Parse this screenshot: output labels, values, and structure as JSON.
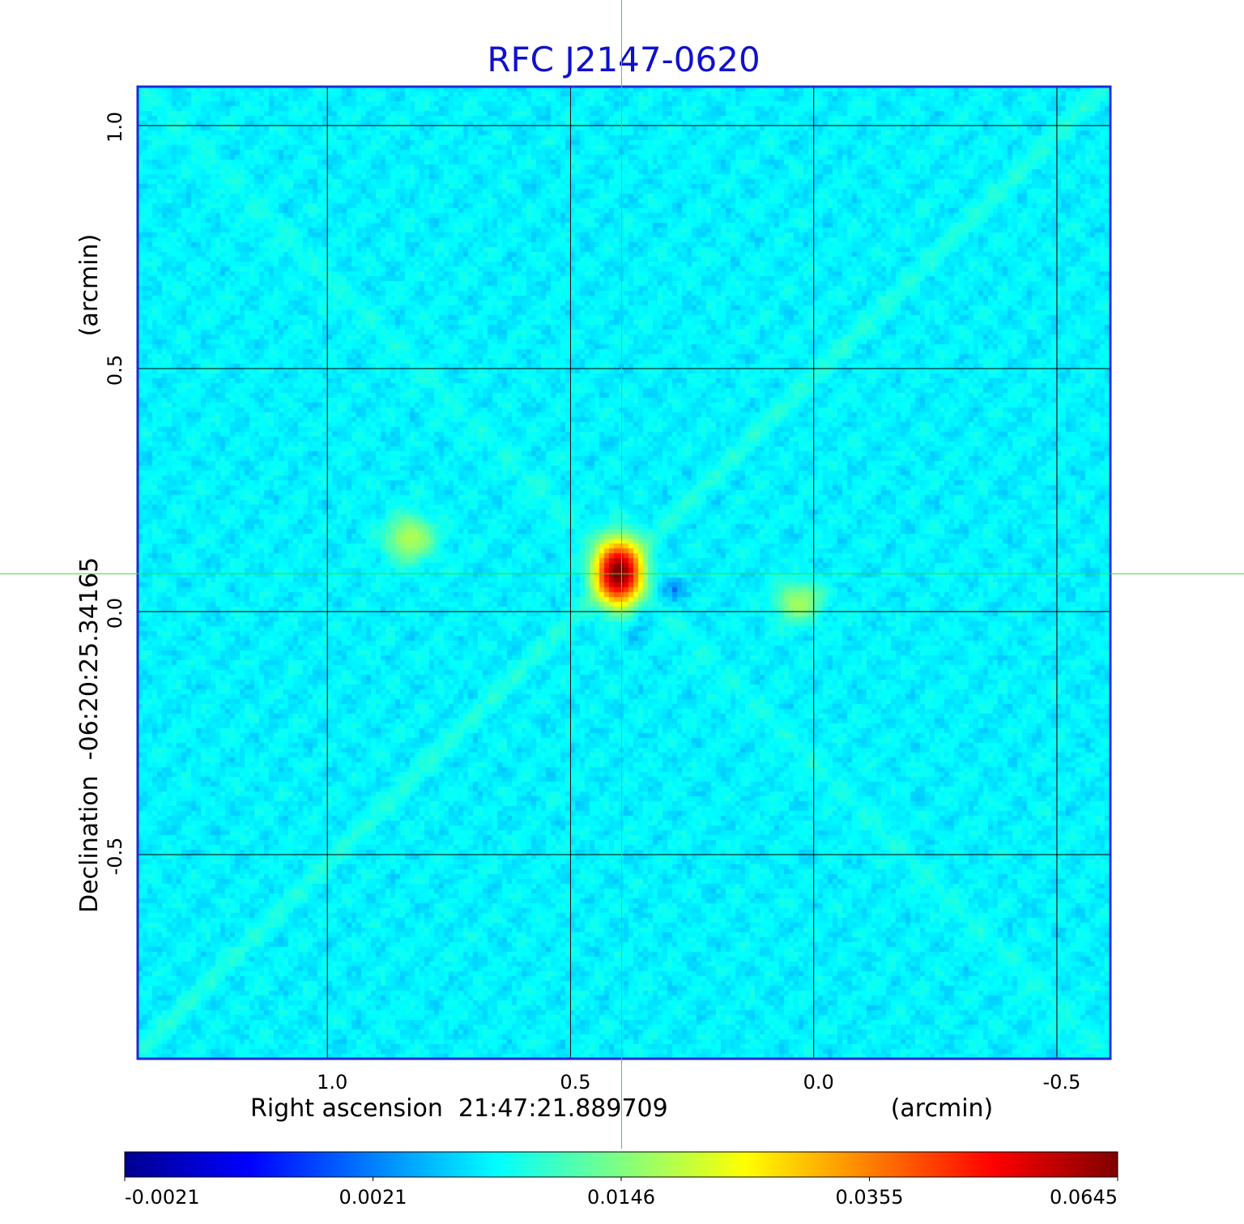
{
  "chart_data": {
    "type": "heatmap",
    "title": "RFC J2147-0620",
    "xlabel": "Right ascension  21:47:21.889709",
    "xunit": "(arcmin)",
    "ylabel": "Declination  -06:20:25.34165",
    "yunit": "(arcmin)",
    "xlim": [
      1.39,
      -0.61
    ],
    "ylim": [
      -0.92,
      1.08
    ],
    "x_ticks": [
      1.0,
      0.5,
      0.0,
      -0.5
    ],
    "x_tick_labels": [
      "1.0",
      "0.5",
      "0.0",
      "-0.5"
    ],
    "y_ticks": [
      1.0,
      0.5,
      0.0,
      -0.5
    ],
    "y_tick_labels": [
      "1.0",
      "0.5",
      "0.0",
      "-0.5"
    ],
    "grid": true,
    "crosshair": {
      "x": 0.395,
      "y": 0.078,
      "color": "#33dd33"
    },
    "colormap": "jet",
    "colorbar": {
      "placement": "bottom",
      "ticks": [
        "-0.0021",
        "0.0021",
        "0.0146",
        "0.0355",
        "0.0645"
      ],
      "min": -0.0021,
      "max": 0.0645
    },
    "background_level": 0.0008,
    "sources": [
      {
        "x": 0.4,
        "y": 0.08,
        "peak": 0.0645,
        "sx": 0.028,
        "sy": 0.038
      },
      {
        "x": 0.83,
        "y": 0.15,
        "peak": 0.009,
        "sx": 0.032,
        "sy": 0.03
      },
      {
        "x": 0.03,
        "y": 0.02,
        "peak": 0.008,
        "sx": 0.03,
        "sy": 0.026
      }
    ],
    "negative_features": [
      {
        "x": 0.29,
        "y": 0.05,
        "peak": -0.0018,
        "sx": 0.03,
        "sy": 0.018
      },
      {
        "x": 0.36,
        "y": -0.01,
        "peak": -0.0016,
        "sx": 0.015,
        "sy": 0.03
      }
    ],
    "colors": {
      "frame": "#1a2bd6",
      "grid": "#000000"
    }
  }
}
